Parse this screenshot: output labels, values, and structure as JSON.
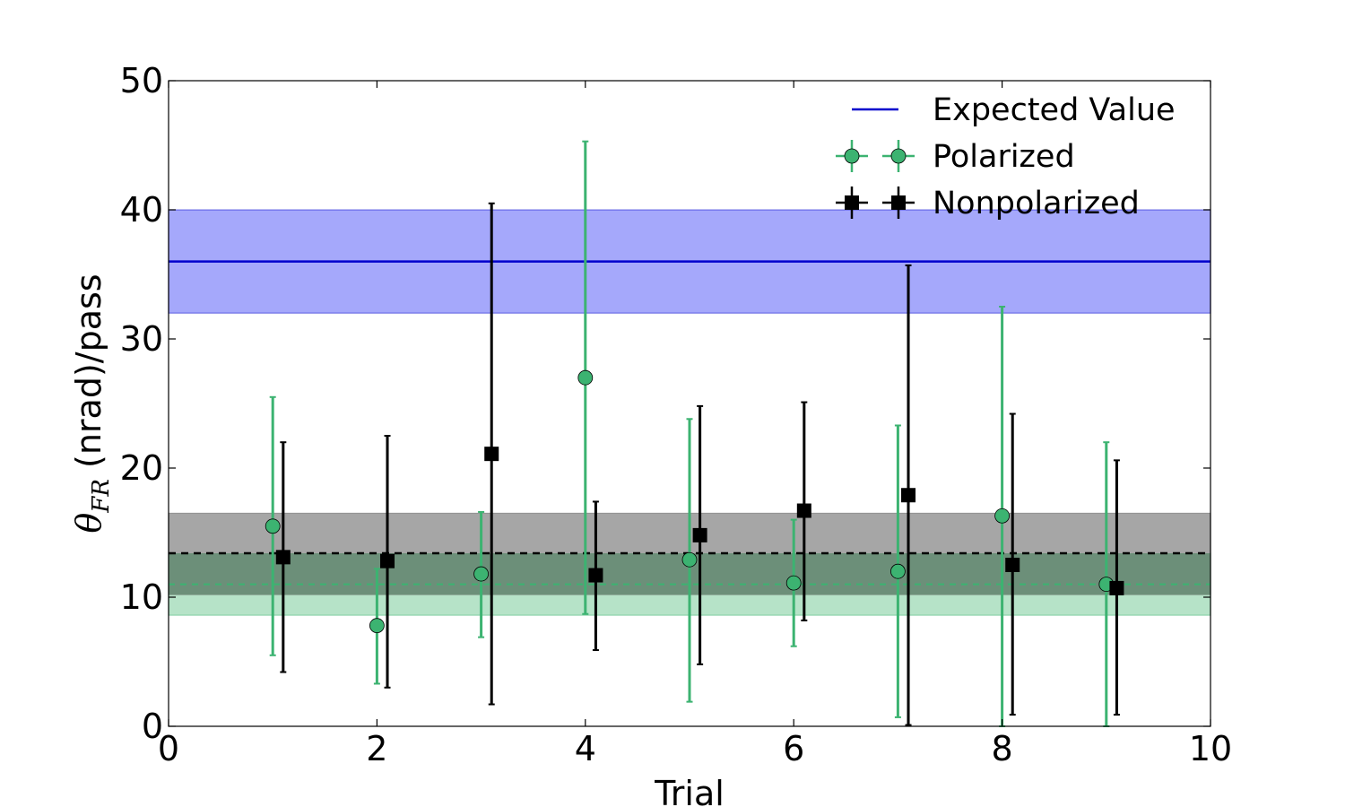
{
  "chart_data": {
    "type": "scatter",
    "xlabel": "Trial",
    "ylabel": {
      "symbol": "θ",
      "subscript": "FR",
      "text": " (nrad)/pass"
    },
    "xlim": [
      0,
      10
    ],
    "ylim": [
      0,
      50
    ],
    "xticks": [
      "0",
      "2",
      "4",
      "6",
      "8",
      "10"
    ],
    "yticks": [
      "0",
      "10",
      "20",
      "30",
      "40",
      "50"
    ],
    "grid": false,
    "legend_position": "top-right",
    "legend": [
      "Expected Value",
      "Polarized",
      "Nonpolarized"
    ],
    "expected": {
      "name": "Expected Value",
      "value": 36,
      "band": [
        32,
        40
      ],
      "color": "#0000cc",
      "band_color": "#a5a8fb"
    },
    "polarized_mean": {
      "value": 11,
      "band": [
        8.6,
        13.4
      ],
      "color": "#3cb371",
      "band_color": "#b6e3c8"
    },
    "nonpolarized_mean": {
      "value": 13.4,
      "band": [
        10.2,
        16.5
      ],
      "color": "#000000",
      "band_color": "#a6a6a6",
      "overlap_color": "#6c8f79"
    },
    "series": [
      {
        "name": "Polarized",
        "color": "#3cb371",
        "marker": "circle",
        "x": [
          1,
          2,
          3,
          4,
          5,
          6,
          7,
          8,
          9
        ],
        "y": [
          15.5,
          7.8,
          11.8,
          27,
          12.9,
          11.1,
          12,
          16.3,
          11
        ],
        "yerr_low": [
          5.5,
          3.3,
          6.9,
          8.7,
          1.9,
          6.2,
          0.7,
          0,
          0
        ],
        "yerr_high": [
          25.5,
          12.2,
          16.6,
          45.3,
          23.8,
          16,
          23.3,
          32.5,
          22
        ]
      },
      {
        "name": "Nonpolarized",
        "color": "#000000",
        "marker": "square",
        "x": [
          1.1,
          2.1,
          3.1,
          4.1,
          5.1,
          6.1,
          7.1,
          8.1,
          9.1
        ],
        "y": [
          13.1,
          12.8,
          21.1,
          11.7,
          14.8,
          16.7,
          17.9,
          12.5,
          10.7
        ],
        "yerr_low": [
          4.2,
          3,
          1.7,
          5.9,
          4.8,
          8.2,
          0.1,
          0.9,
          0.9
        ],
        "yerr_high": [
          22,
          22.5,
          40.5,
          17.4,
          24.8,
          25.1,
          35.7,
          24.2,
          20.6
        ]
      }
    ]
  }
}
